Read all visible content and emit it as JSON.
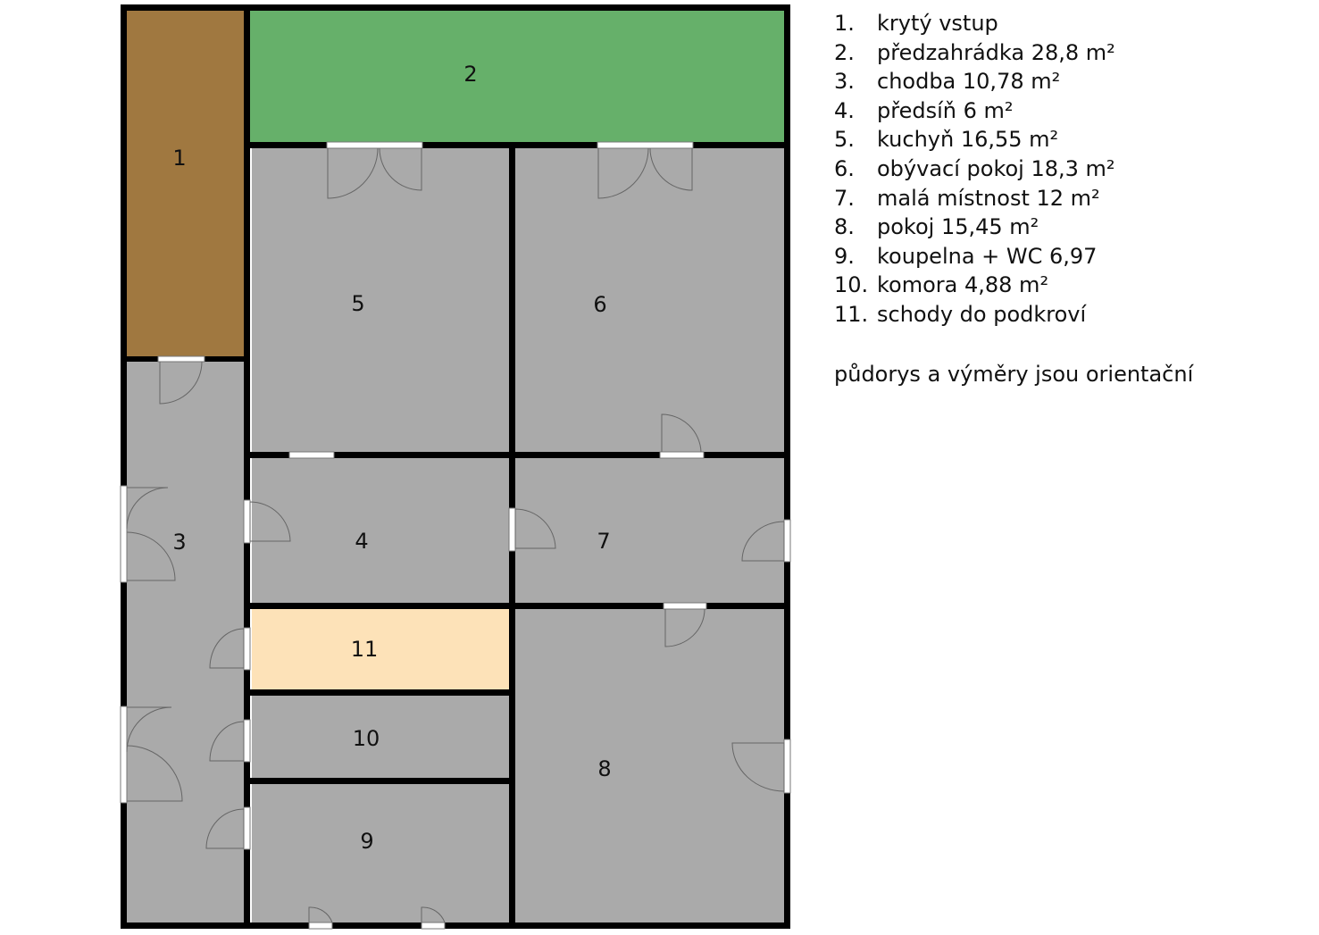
{
  "colors": {
    "wall": "#000000",
    "room_gray": "#aaaaaa",
    "entrance_brown": "#a07840",
    "garden_green": "#66b06a",
    "stairs_beige": "#fde2b8",
    "door_line": "#777777"
  },
  "rooms": [
    {
      "id": "1",
      "label": "1"
    },
    {
      "id": "2",
      "label": "2"
    },
    {
      "id": "3",
      "label": "3"
    },
    {
      "id": "4",
      "label": "4"
    },
    {
      "id": "5",
      "label": "5"
    },
    {
      "id": "6",
      "label": "6"
    },
    {
      "id": "7",
      "label": "7"
    },
    {
      "id": "8",
      "label": "8"
    },
    {
      "id": "9",
      "label": "9"
    },
    {
      "id": "10",
      "label": "10"
    },
    {
      "id": "11",
      "label": "11"
    }
  ],
  "legend": {
    "items": [
      {
        "num": "1.",
        "text": "krytý vstup"
      },
      {
        "num": "2.",
        "text": "předzahrádka 28,8 m²"
      },
      {
        "num": "3.",
        "text": "chodba 10,78 m²"
      },
      {
        "num": "4.",
        "text": "předsíň 6 m²"
      },
      {
        "num": "5.",
        "text": "kuchyň 16,55 m²"
      },
      {
        "num": "6.",
        "text": "obývací pokoj 18,3 m²"
      },
      {
        "num": "7.",
        "text": "malá místnost 12 m²"
      },
      {
        "num": "8.",
        "text": "pokoj 15,45 m²"
      },
      {
        "num": "9.",
        "text": "koupelna + WC 6,97"
      },
      {
        "num": "10.",
        "text": "komora 4,88 m²"
      },
      {
        "num": "11.",
        "text": "schody do podkroví"
      }
    ],
    "note": "půdorys a výměry jsou orientační"
  }
}
